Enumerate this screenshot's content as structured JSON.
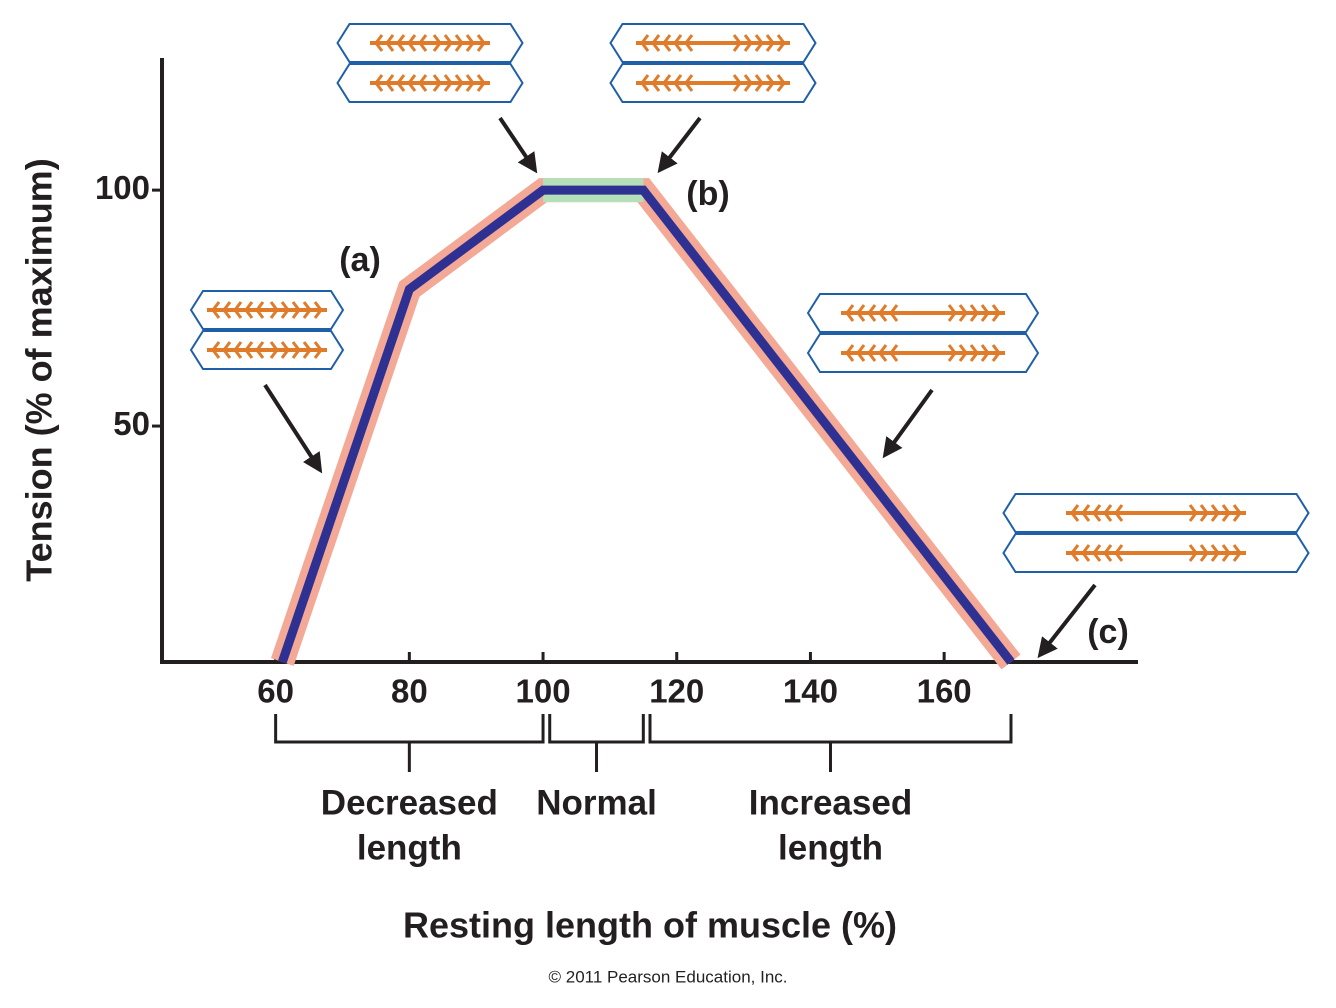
{
  "chart_data": {
    "type": "line",
    "x_label": "Resting length of muscle (%)",
    "y_label": "Tension (% of maximum)",
    "x": [
      61,
      80,
      100,
      115,
      170
    ],
    "series": [
      {
        "name": "Tension",
        "color": "#2e3192",
        "values": [
          0,
          79,
          100,
          100,
          0
        ]
      }
    ],
    "xlim": [
      43,
      189
    ],
    "ylim": [
      0,
      128
    ],
    "xticks": [
      60,
      80,
      100,
      120,
      140,
      160
    ],
    "yticks": [
      50,
      100
    ],
    "annotations": [
      "(a)",
      "(b)",
      "(c)"
    ],
    "regions": [
      {
        "label": [
          "Decreased",
          "length"
        ],
        "range": [
          60,
          100
        ]
      },
      {
        "label": [
          "Normal"
        ],
        "range": [
          101,
          115
        ]
      },
      {
        "label": [
          "Increased",
          "length"
        ],
        "range": [
          116,
          170
        ]
      }
    ],
    "credit": "© 2011 Pearson Education, Inc."
  }
}
